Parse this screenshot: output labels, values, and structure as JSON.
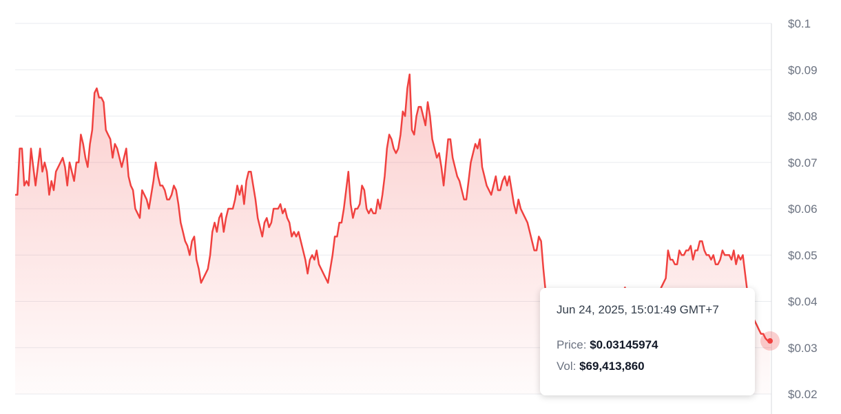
{
  "chart_data": {
    "type": "area",
    "y_ticks": [
      "$0.1",
      "$0.09",
      "$0.08",
      "$0.07",
      "$0.06",
      "$0.05",
      "$0.04",
      "$0.03",
      "$0.02"
    ],
    "y_tick_values": [
      0.1,
      0.09,
      0.08,
      0.07,
      0.06,
      0.05,
      0.04,
      0.03,
      0.02
    ],
    "ylim": [
      0.0195,
      0.1
    ],
    "grid": true,
    "series": [
      {
        "color": "#f0413f",
        "values": [
          0.063,
          0.063,
          0.073,
          0.073,
          0.065,
          0.066,
          0.065,
          0.073,
          0.069,
          0.065,
          0.069,
          0.073,
          0.068,
          0.07,
          0.068,
          0.063,
          0.066,
          0.064,
          0.068,
          0.069,
          0.07,
          0.071,
          0.069,
          0.065,
          0.07,
          0.068,
          0.066,
          0.07,
          0.07,
          0.076,
          0.074,
          0.071,
          0.069,
          0.074,
          0.077,
          0.085,
          0.086,
          0.084,
          0.084,
          0.083,
          0.077,
          0.076,
          0.075,
          0.071,
          0.074,
          0.073,
          0.071,
          0.069,
          0.071,
          0.073,
          0.067,
          0.065,
          0.064,
          0.06,
          0.059,
          0.058,
          0.064,
          0.063,
          0.062,
          0.06,
          0.063,
          0.066,
          0.07,
          0.067,
          0.065,
          0.065,
          0.064,
          0.062,
          0.062,
          0.063,
          0.065,
          0.064,
          0.061,
          0.057,
          0.055,
          0.053,
          0.052,
          0.05,
          0.053,
          0.054,
          0.049,
          0.047,
          0.044,
          0.045,
          0.046,
          0.047,
          0.05,
          0.055,
          0.057,
          0.055,
          0.058,
          0.059,
          0.055,
          0.058,
          0.06,
          0.06,
          0.06,
          0.062,
          0.065,
          0.063,
          0.065,
          0.061,
          0.066,
          0.068,
          0.068,
          0.065,
          0.062,
          0.058,
          0.056,
          0.054,
          0.057,
          0.058,
          0.056,
          0.057,
          0.06,
          0.06,
          0.06,
          0.061,
          0.059,
          0.06,
          0.058,
          0.057,
          0.054,
          0.055,
          0.054,
          0.055,
          0.053,
          0.051,
          0.049,
          0.046,
          0.049,
          0.05,
          0.049,
          0.051,
          0.048,
          0.047,
          0.046,
          0.045,
          0.044,
          0.047,
          0.05,
          0.054,
          0.054,
          0.057,
          0.057,
          0.06,
          0.064,
          0.068,
          0.061,
          0.058,
          0.06,
          0.06,
          0.061,
          0.065,
          0.064,
          0.06,
          0.059,
          0.06,
          0.059,
          0.059,
          0.062,
          0.06,
          0.063,
          0.067,
          0.073,
          0.076,
          0.075,
          0.073,
          0.072,
          0.073,
          0.076,
          0.081,
          0.08,
          0.086,
          0.089,
          0.077,
          0.076,
          0.08,
          0.082,
          0.082,
          0.08,
          0.078,
          0.083,
          0.08,
          0.075,
          0.073,
          0.071,
          0.072,
          0.069,
          0.065,
          0.07,
          0.075,
          0.075,
          0.071,
          0.069,
          0.067,
          0.066,
          0.064,
          0.062,
          0.062,
          0.066,
          0.07,
          0.072,
          0.074,
          0.073,
          0.075,
          0.069,
          0.067,
          0.065,
          0.064,
          0.063,
          0.065,
          0.067,
          0.064,
          0.064,
          0.066,
          0.067,
          0.065,
          0.067,
          0.064,
          0.061,
          0.059,
          0.062,
          0.06,
          0.059,
          0.058,
          0.057,
          0.055,
          0.053,
          0.051,
          0.051,
          0.054,
          0.053,
          0.047,
          0.042,
          0.039,
          0.036,
          0.035,
          0.039,
          0.04,
          0.038,
          0.038,
          0.038,
          0.039,
          0.039,
          0.038,
          0.038,
          0.037,
          0.037,
          0.036,
          0.035,
          0.037,
          0.038,
          0.039,
          0.036,
          0.034,
          0.033,
          0.033,
          0.035,
          0.036,
          0.037,
          0.036,
          0.036,
          0.035,
          0.036,
          0.037,
          0.04,
          0.041,
          0.042,
          0.043,
          0.041,
          0.04,
          0.038,
          0.036,
          0.035,
          0.034,
          0.035,
          0.035,
          0.036,
          0.037,
          0.038,
          0.04,
          0.041,
          0.042,
          0.042,
          0.043,
          0.044,
          0.045,
          0.051,
          0.049,
          0.049,
          0.048,
          0.048,
          0.051,
          0.05,
          0.05,
          0.051,
          0.051,
          0.052,
          0.049,
          0.051,
          0.051,
          0.053,
          0.053,
          0.051,
          0.05,
          0.05,
          0.049,
          0.05,
          0.048,
          0.048,
          0.049,
          0.051,
          0.05,
          0.05,
          0.05,
          0.049,
          0.051,
          0.048,
          0.05,
          0.049,
          0.05,
          0.046,
          0.042,
          0.041,
          0.038,
          0.036,
          0.035,
          0.034,
          0.033,
          0.033,
          0.032,
          0.0315,
          0.03145974
        ]
      }
    ]
  },
  "tooltip": {
    "date": "Jun 24, 2025, 15:01:49 GMT+7",
    "price_label": "Price:",
    "price_value": "$0.03145974",
    "vol_label": "Vol:",
    "vol_value": "$69,413,860"
  },
  "colors": {
    "line": "#f0413f",
    "grid": "#e9ebef",
    "axis_line": "#d7d9de",
    "tick_text": "#6b7280"
  }
}
